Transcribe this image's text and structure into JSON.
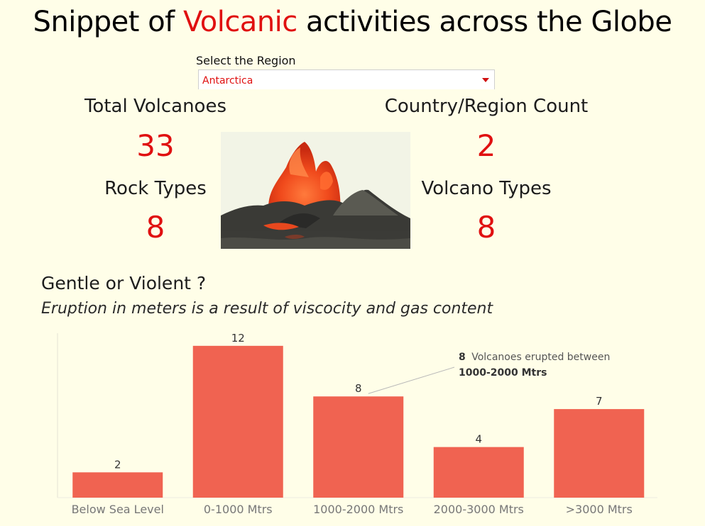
{
  "title": {
    "before": "Snippet of",
    "accent": "Volcanic",
    "after": "activities across the Globe"
  },
  "filter": {
    "label": "Select the Region",
    "selected": "Antarctica"
  },
  "kpis": {
    "total_volcanoes": {
      "label": "Total Volcanoes",
      "value": "33"
    },
    "country_region_count": {
      "label": "Country/Region Count",
      "value": "2"
    },
    "rock_types": {
      "label": "Rock Types",
      "value": "8"
    },
    "volcano_types": {
      "label": "Volcano Types",
      "value": "8"
    }
  },
  "section": {
    "heading": "Gentle or Violent ?",
    "subheading": "Eruption in meters is a result of viscocity and gas content"
  },
  "colors": {
    "accent": "#e01010",
    "bar": "#f06351",
    "background": "#fffee8"
  },
  "chart_data": {
    "type": "bar",
    "categories": [
      "Below Sea Level",
      "0-1000 Mtrs",
      "1000-2000 Mtrs",
      "2000-3000 Mtrs",
      ">3000 Mtrs"
    ],
    "values": [
      2,
      12,
      8,
      4,
      7
    ],
    "ylim": [
      0,
      13
    ],
    "grid": false,
    "annotation": {
      "category": "1000-2000 Mtrs",
      "count": "8",
      "line1": "Volcanoes erupted between",
      "line2": "1000-2000 Mtrs"
    }
  }
}
